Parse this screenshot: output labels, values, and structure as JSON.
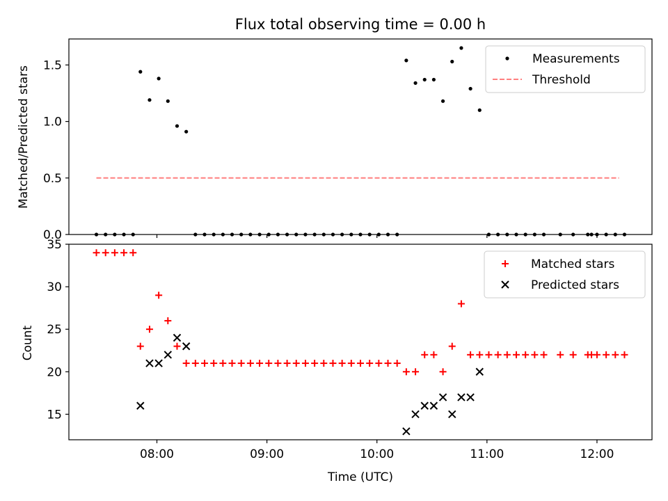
{
  "chart_data": [
    {
      "type": "scatter",
      "title": "Flux total observing time = 0.00 h",
      "xlabel": "",
      "ylabel": "Matched/Predicted stars",
      "xlim": [
        "07:12",
        "12:30"
      ],
      "ylim": [
        0,
        1.73
      ],
      "yticks": [
        0.0,
        0.5,
        1.0,
        1.5
      ],
      "ytick_labels": [
        "0.0",
        "0.5",
        "1.0",
        "1.5"
      ],
      "legend_position": "top-right",
      "grid": false,
      "series": [
        {
          "name": "Measurements",
          "color": "#000000",
          "marker": "dot",
          "points": [
            [
              "07:27",
              0
            ],
            [
              "07:32",
              0
            ],
            [
              "07:37",
              0
            ],
            [
              "07:42",
              0
            ],
            [
              "07:47",
              0
            ],
            [
              "07:51",
              1.44
            ],
            [
              "07:56",
              1.19
            ],
            [
              "08:01",
              1.38
            ],
            [
              "08:06",
              1.18
            ],
            [
              "08:11",
              0.96
            ],
            [
              "08:16",
              0.91
            ],
            [
              "08:21",
              0
            ],
            [
              "08:26",
              0
            ],
            [
              "08:31",
              0
            ],
            [
              "08:36",
              0
            ],
            [
              "08:41",
              0
            ],
            [
              "08:46",
              0
            ],
            [
              "08:51",
              0
            ],
            [
              "08:56",
              0
            ],
            [
              "09:01",
              0
            ],
            [
              "09:06",
              0
            ],
            [
              "09:11",
              0
            ],
            [
              "09:16",
              0
            ],
            [
              "09:21",
              0
            ],
            [
              "09:26",
              0
            ],
            [
              "09:31",
              0
            ],
            [
              "09:36",
              0
            ],
            [
              "09:41",
              0
            ],
            [
              "09:46",
              0
            ],
            [
              "09:51",
              0
            ],
            [
              "09:56",
              0
            ],
            [
              "10:01",
              0
            ],
            [
              "10:06",
              0
            ],
            [
              "10:11",
              0
            ],
            [
              "10:16",
              1.54
            ],
            [
              "10:21",
              1.34
            ],
            [
              "10:26",
              1.37
            ],
            [
              "10:31",
              1.37
            ],
            [
              "10:36",
              1.18
            ],
            [
              "10:41",
              1.53
            ],
            [
              "10:46",
              1.65
            ],
            [
              "10:51",
              1.29
            ],
            [
              "10:56",
              1.1
            ],
            [
              "11:01",
              0
            ],
            [
              "11:06",
              0
            ],
            [
              "11:11",
              0
            ],
            [
              "11:16",
              0
            ],
            [
              "11:21",
              0
            ],
            [
              "11:26",
              0
            ],
            [
              "11:31",
              0
            ],
            [
              "11:40",
              0
            ],
            [
              "11:47",
              0
            ],
            [
              "11:55",
              0
            ],
            [
              "11:57",
              0
            ],
            [
              "12:00",
              0
            ],
            [
              "12:05",
              0
            ],
            [
              "12:10",
              0
            ],
            [
              "12:15",
              0
            ]
          ]
        },
        {
          "name": "Threshold",
          "color": "#ff7f7f",
          "line": "dashed",
          "points": [
            [
              "07:27",
              0.5
            ],
            [
              "12:12",
              0.5
            ]
          ]
        }
      ]
    },
    {
      "type": "scatter",
      "title": "",
      "xlabel": "Time (UTC)",
      "ylabel": "Count",
      "xlim": [
        "07:12",
        "12:30"
      ],
      "ylim": [
        12,
        35
      ],
      "yticks": [
        15,
        20,
        25,
        30,
        35
      ],
      "ytick_labels": [
        "15",
        "20",
        "25",
        "30",
        "35"
      ],
      "xticks": [
        "08:00",
        "09:00",
        "10:00",
        "11:00",
        "12:00"
      ],
      "xtick_labels": [
        "08:00",
        "09:00",
        "10:00",
        "11:00",
        "12:00"
      ],
      "legend_position": "top-right",
      "grid": false,
      "series": [
        {
          "name": "Matched stars",
          "color": "#ff0000",
          "marker": "plus",
          "points": [
            [
              "07:27",
              34
            ],
            [
              "07:32",
              34
            ],
            [
              "07:37",
              34
            ],
            [
              "07:42",
              34
            ],
            [
              "07:47",
              34
            ],
            [
              "07:51",
              23
            ],
            [
              "07:56",
              25
            ],
            [
              "08:01",
              29
            ],
            [
              "08:06",
              26
            ],
            [
              "08:11",
              23
            ],
            [
              "08:16",
              21
            ],
            [
              "08:21",
              21
            ],
            [
              "08:26",
              21
            ],
            [
              "08:31",
              21
            ],
            [
              "08:36",
              21
            ],
            [
              "08:41",
              21
            ],
            [
              "08:46",
              21
            ],
            [
              "08:51",
              21
            ],
            [
              "08:56",
              21
            ],
            [
              "09:01",
              21
            ],
            [
              "09:06",
              21
            ],
            [
              "09:11",
              21
            ],
            [
              "09:16",
              21
            ],
            [
              "09:21",
              21
            ],
            [
              "09:26",
              21
            ],
            [
              "09:31",
              21
            ],
            [
              "09:36",
              21
            ],
            [
              "09:41",
              21
            ],
            [
              "09:46",
              21
            ],
            [
              "09:51",
              21
            ],
            [
              "09:56",
              21
            ],
            [
              "10:01",
              21
            ],
            [
              "10:06",
              21
            ],
            [
              "10:11",
              21
            ],
            [
              "10:16",
              20
            ],
            [
              "10:21",
              20
            ],
            [
              "10:26",
              22
            ],
            [
              "10:31",
              22
            ],
            [
              "10:36",
              20
            ],
            [
              "10:41",
              23
            ],
            [
              "10:46",
              28
            ],
            [
              "10:51",
              22
            ],
            [
              "10:56",
              22
            ],
            [
              "11:01",
              22
            ],
            [
              "11:06",
              22
            ],
            [
              "11:11",
              22
            ],
            [
              "11:16",
              22
            ],
            [
              "11:21",
              22
            ],
            [
              "11:26",
              22
            ],
            [
              "11:31",
              22
            ],
            [
              "11:40",
              22
            ],
            [
              "11:47",
              22
            ],
            [
              "11:55",
              22
            ],
            [
              "11:57",
              22
            ],
            [
              "12:00",
              22
            ],
            [
              "12:05",
              22
            ],
            [
              "12:10",
              22
            ],
            [
              "12:15",
              22
            ]
          ]
        },
        {
          "name": "Predicted stars",
          "color": "#000000",
          "marker": "x",
          "points": [
            [
              "07:51",
              16
            ],
            [
              "07:56",
              21
            ],
            [
              "08:01",
              21
            ],
            [
              "08:06",
              22
            ],
            [
              "08:11",
              24
            ],
            [
              "08:16",
              23
            ],
            [
              "10:16",
              13
            ],
            [
              "10:21",
              15
            ],
            [
              "10:26",
              16
            ],
            [
              "10:31",
              16
            ],
            [
              "10:36",
              17
            ],
            [
              "10:41",
              15
            ],
            [
              "10:46",
              17
            ],
            [
              "10:51",
              17
            ],
            [
              "10:56",
              20
            ]
          ]
        }
      ]
    }
  ]
}
